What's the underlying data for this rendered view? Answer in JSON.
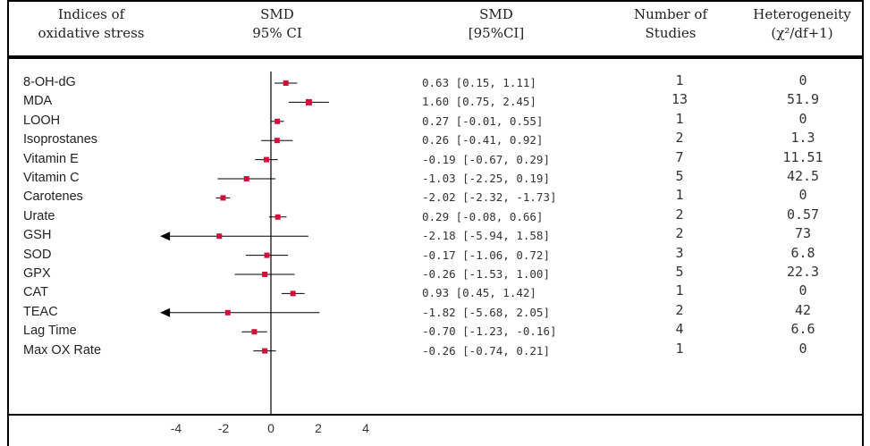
{
  "header": {
    "indices_line1": "Indices of",
    "indices_line2": "oxidative stress",
    "smd_line1": "SMD",
    "smd_line2": "95% CI",
    "smdci_line1": "SMD",
    "smdci_line2": "[95%CI]",
    "studies_line1": "Number of",
    "studies_line2": "Studies",
    "het_line1": "Heterogeneity",
    "het_line2": "(χ²/df+1)"
  },
  "chart_data": {
    "type": "forest",
    "x_ticks": [
      -4,
      -2,
      0,
      2,
      4
    ],
    "xlim": [
      -4.6,
      5.0
    ],
    "marker_color": "#d0103a",
    "rows": [
      {
        "label": "8-OH-dG",
        "smd": 0.63,
        "lo": 0.15,
        "hi": 1.11,
        "ci_text": "0.63 [0.15, 1.11]",
        "studies": "1",
        "het": "0"
      },
      {
        "label": "MDA",
        "smd": 1.6,
        "lo": 0.75,
        "hi": 2.45,
        "ci_text": "1.60 [0.75, 2.45]",
        "studies": "13",
        "het": "51.9"
      },
      {
        "label": "LOOH",
        "smd": 0.27,
        "lo": -0.01,
        "hi": 0.55,
        "ci_text": "0.27 [-0.01, 0.55]",
        "studies": "1",
        "het": "0"
      },
      {
        "label": "Isoprostanes",
        "smd": 0.26,
        "lo": -0.41,
        "hi": 0.92,
        "ci_text": "0.26 [-0.41, 0.92]",
        "studies": "2",
        "het": "1.3"
      },
      {
        "label": "Vitamin E",
        "smd": -0.19,
        "lo": -0.67,
        "hi": 0.29,
        "ci_text": "-0.19 [-0.67, 0.29]",
        "studies": "7",
        "het": "11.51"
      },
      {
        "label": "Vitamin C",
        "smd": -1.03,
        "lo": -2.25,
        "hi": 0.19,
        "ci_text": "-1.03 [-2.25, 0.19]",
        "studies": "5",
        "het": "42.5"
      },
      {
        "label": "Carotenes",
        "smd": -2.02,
        "lo": -2.32,
        "hi": -1.73,
        "ci_text": "-2.02 [-2.32, -1.73]",
        "studies": "1",
        "het": "0"
      },
      {
        "label": "Urate",
        "smd": 0.29,
        "lo": -0.08,
        "hi": 0.66,
        "ci_text": "0.29 [-0.08, 0.66]",
        "studies": "2",
        "het": "0.57"
      },
      {
        "label": "GSH",
        "smd": -2.18,
        "lo": -5.94,
        "hi": 1.58,
        "ci_text": "-2.18 [-5.94, 1.58]",
        "studies": "2",
        "het": "73"
      },
      {
        "label": "SOD",
        "smd": -0.17,
        "lo": -1.06,
        "hi": 0.72,
        "ci_text": "-0.17 [-1.06, 0.72]",
        "studies": "3",
        "het": "6.8"
      },
      {
        "label": "GPX",
        "smd": -0.26,
        "lo": -1.53,
        "hi": 1.0,
        "ci_text": "-0.26 [-1.53, 1.00]",
        "studies": "5",
        "het": "22.3"
      },
      {
        "label": "CAT",
        "smd": 0.93,
        "lo": 0.45,
        "hi": 1.42,
        "ci_text": "0.93 [0.45, 1.42]",
        "studies": "1",
        "het": "0"
      },
      {
        "label": "TEAC",
        "smd": -1.82,
        "lo": -5.68,
        "hi": 2.05,
        "ci_text": "-1.82 [-5.68, 2.05]",
        "studies": "2",
        "het": "42"
      },
      {
        "label": "Lag Time",
        "smd": -0.7,
        "lo": -1.23,
        "hi": -0.16,
        "ci_text": "-0.70 [-1.23, -0.16]",
        "studies": "4",
        "het": "6.6"
      },
      {
        "label": "Max OX Rate",
        "smd": -0.26,
        "lo": -0.74,
        "hi": 0.21,
        "ci_text": "-0.26 [-0.74, 0.21]",
        "studies": "1",
        "het": "0"
      }
    ]
  }
}
